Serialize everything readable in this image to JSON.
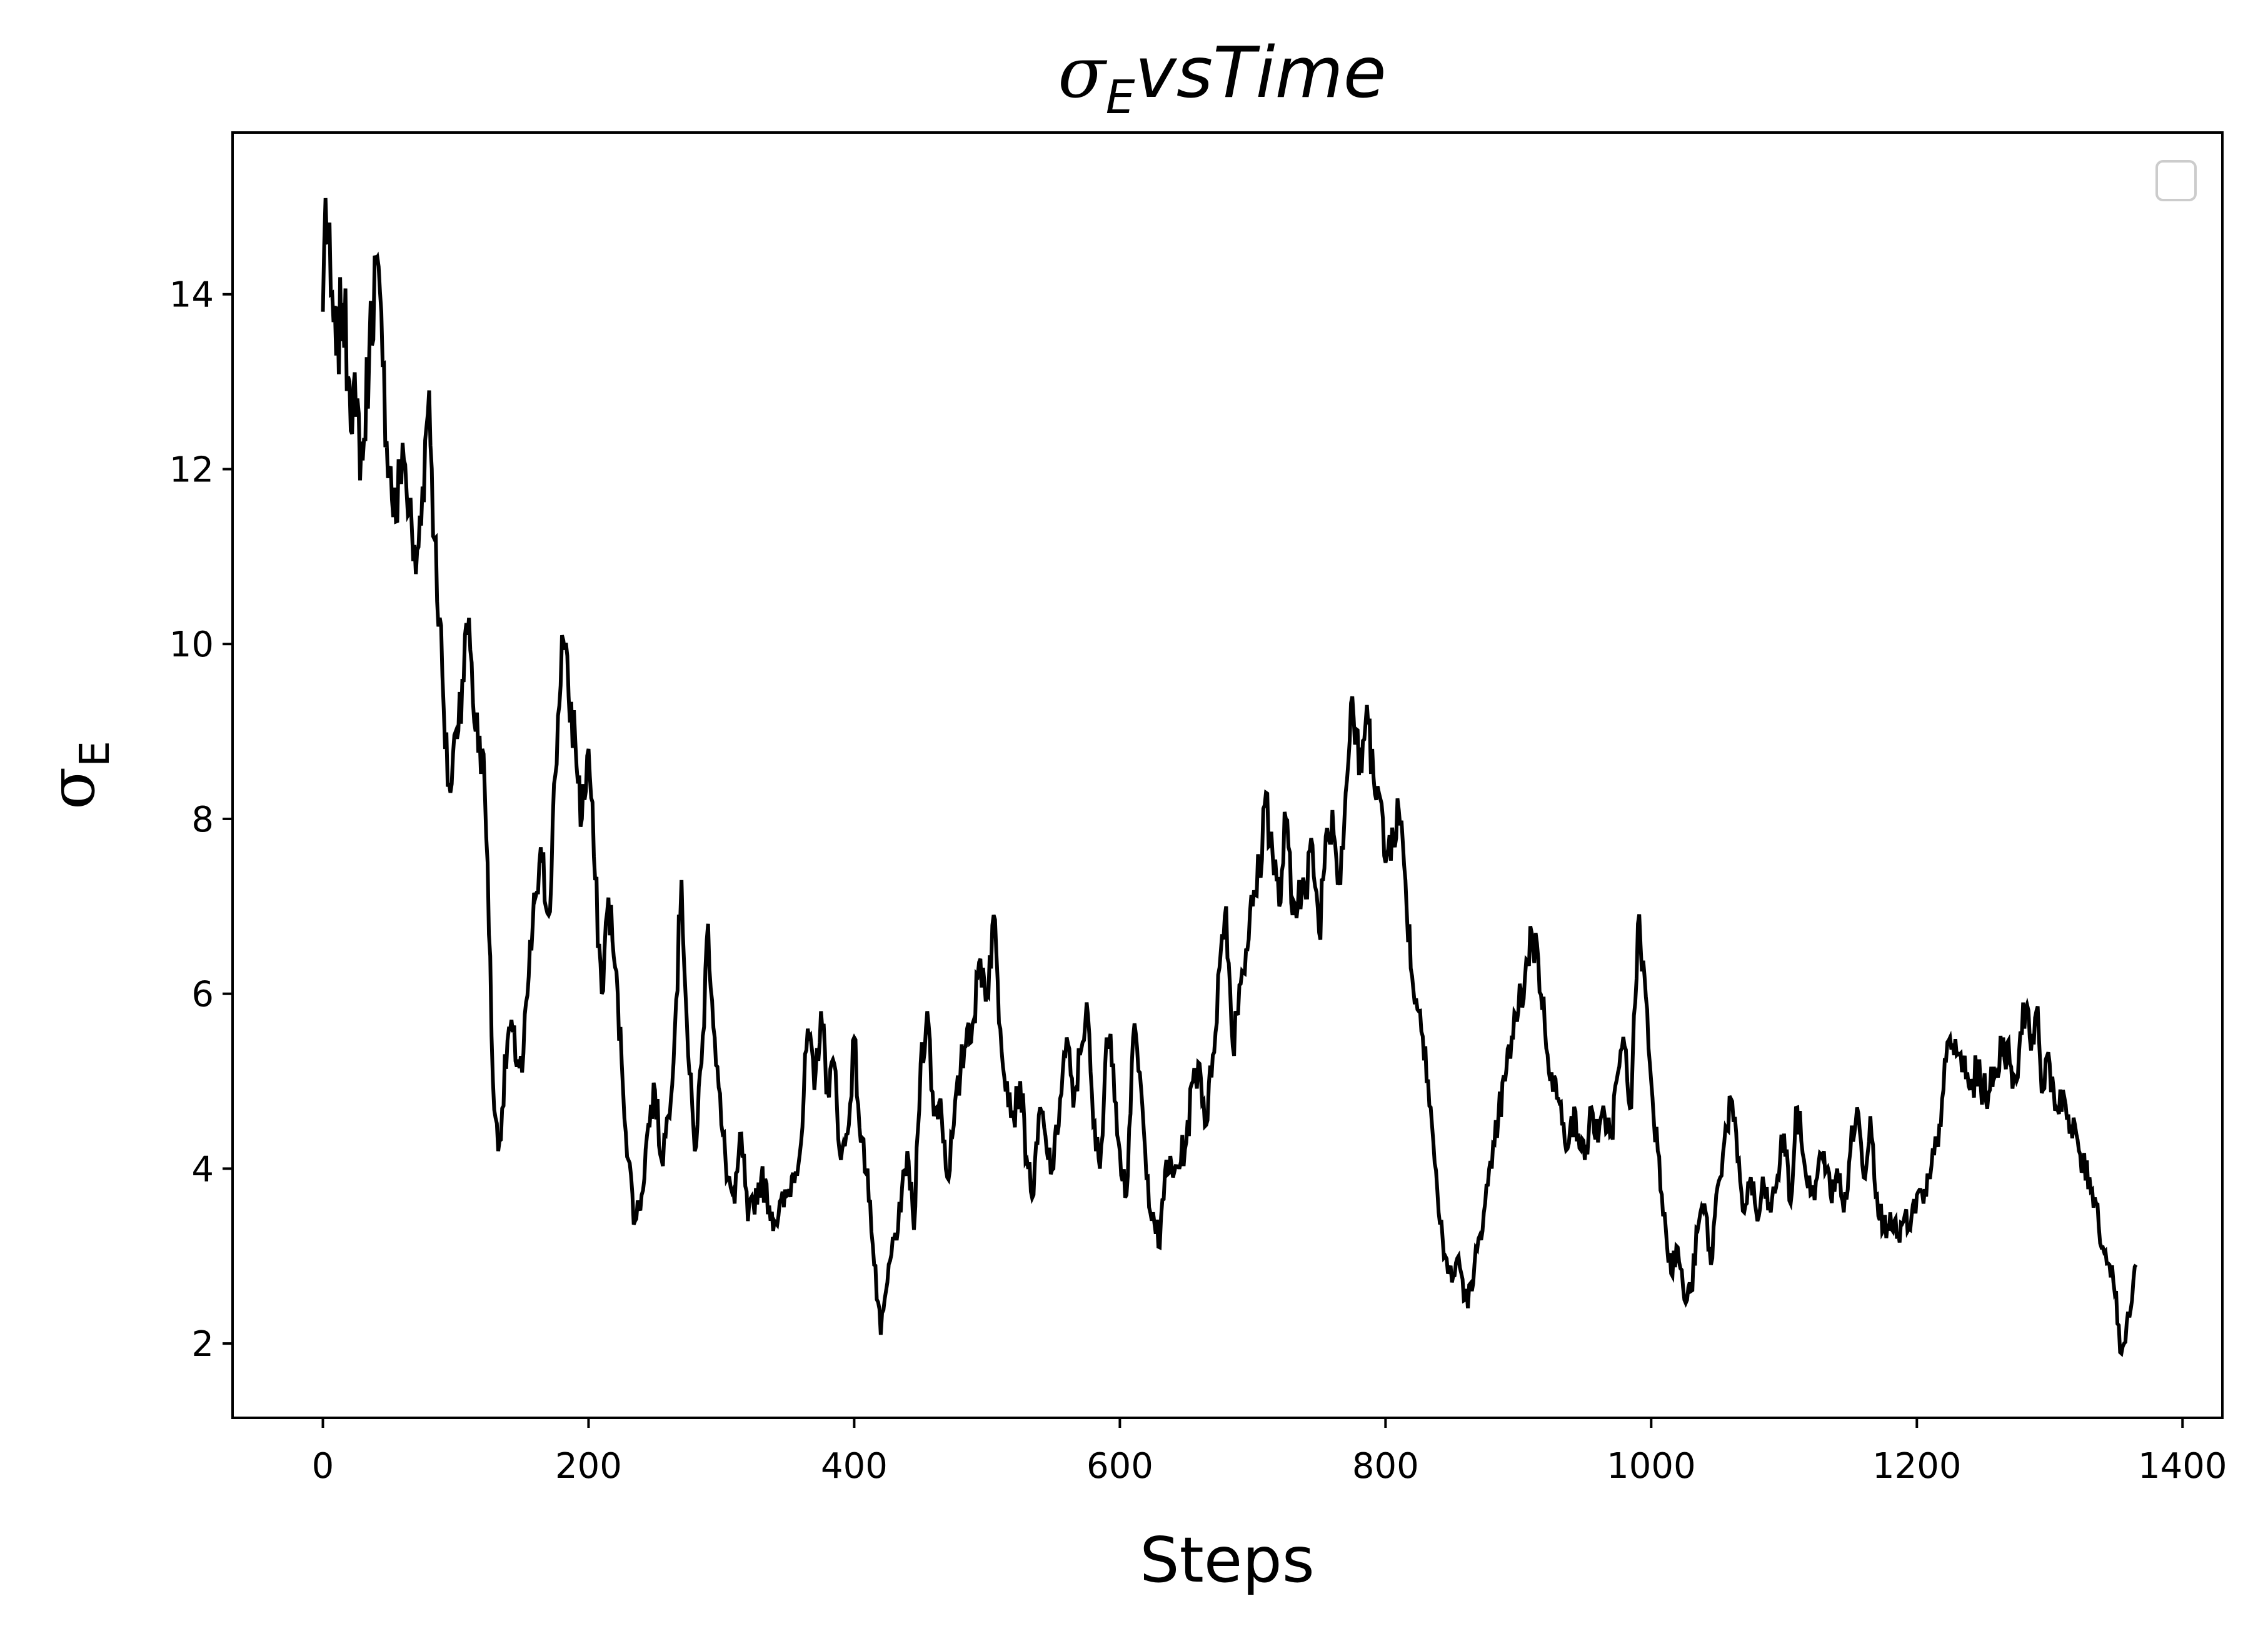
{
  "chart_data": {
    "type": "line",
    "title": {
      "sym": "σ",
      "sub": "E",
      "rest": "vsTime"
    },
    "xlabel": "Steps",
    "ylabel": {
      "sym": "σ",
      "sub": "E"
    },
    "xlim": [
      -68,
      1430
    ],
    "ylim": [
      1.15,
      15.85
    ],
    "xticks": [
      0,
      200,
      400,
      600,
      800,
      1000,
      1200,
      1400
    ],
    "yticks": [
      2,
      4,
      6,
      8,
      10,
      12,
      14
    ],
    "legend": {
      "placement": "top-right",
      "entries": []
    },
    "grid": false,
    "colors": {
      "line": "#000000",
      "axes": "#000000",
      "legend_frame": "#cccccc"
    },
    "x_range": [
      0,
      1365
    ],
    "series": [
      {
        "keyframes": [
          [
            0,
            13.8
          ],
          [
            2,
            15.1
          ],
          [
            6,
            14.0
          ],
          [
            10,
            13.3
          ],
          [
            15,
            13.9
          ],
          [
            20,
            13.0
          ],
          [
            25,
            12.6
          ],
          [
            30,
            12.1
          ],
          [
            35,
            13.4
          ],
          [
            40,
            14.4
          ],
          [
            45,
            13.2
          ],
          [
            50,
            12.0
          ],
          [
            55,
            11.4
          ],
          [
            60,
            12.3
          ],
          [
            65,
            11.5
          ],
          [
            70,
            10.8
          ],
          [
            75,
            11.8
          ],
          [
            80,
            12.9
          ],
          [
            84,
            11.2
          ],
          [
            88,
            10.3
          ],
          [
            92,
            8.8
          ],
          [
            96,
            8.3
          ],
          [
            100,
            9.0
          ],
          [
            105,
            9.6
          ],
          [
            110,
            10.3
          ],
          [
            115,
            9.0
          ],
          [
            120,
            8.8
          ],
          [
            124,
            7.5
          ],
          [
            128,
            5.0
          ],
          [
            132,
            4.2
          ],
          [
            140,
            5.6
          ],
          [
            150,
            5.1
          ],
          [
            155,
            6.2
          ],
          [
            160,
            7.1
          ],
          [
            165,
            7.5
          ],
          [
            170,
            6.9
          ],
          [
            175,
            8.5
          ],
          [
            180,
            10.1
          ],
          [
            185,
            9.4
          ],
          [
            190,
            8.9
          ],
          [
            195,
            8.0
          ],
          [
            200,
            8.8
          ],
          [
            205,
            7.3
          ],
          [
            210,
            6.0
          ],
          [
            215,
            7.1
          ],
          [
            220,
            6.3
          ],
          [
            225,
            5.2
          ],
          [
            230,
            4.1
          ],
          [
            235,
            3.4
          ],
          [
            240,
            3.7
          ],
          [
            245,
            4.5
          ],
          [
            250,
            4.9
          ],
          [
            255,
            4.1
          ],
          [
            260,
            4.6
          ],
          [
            265,
            5.6
          ],
          [
            270,
            7.3
          ],
          [
            275,
            5.3
          ],
          [
            280,
            4.2
          ],
          [
            285,
            5.2
          ],
          [
            290,
            6.8
          ],
          [
            295,
            5.5
          ],
          [
            300,
            4.5
          ],
          [
            305,
            3.9
          ],
          [
            310,
            3.6
          ],
          [
            315,
            4.4
          ],
          [
            320,
            3.4
          ],
          [
            330,
            3.9
          ],
          [
            340,
            3.4
          ],
          [
            350,
            3.7
          ],
          [
            360,
            4.3
          ],
          [
            365,
            5.6
          ],
          [
            370,
            4.9
          ],
          [
            375,
            5.8
          ],
          [
            380,
            4.9
          ],
          [
            385,
            5.2
          ],
          [
            390,
            4.1
          ],
          [
            395,
            4.4
          ],
          [
            400,
            5.5
          ],
          [
            405,
            4.3
          ],
          [
            410,
            4.0
          ],
          [
            415,
            2.9
          ],
          [
            420,
            2.1
          ],
          [
            425,
            2.7
          ],
          [
            430,
            3.2
          ],
          [
            435,
            3.5
          ],
          [
            440,
            4.2
          ],
          [
            445,
            3.3
          ],
          [
            450,
            5.2
          ],
          [
            455,
            5.8
          ],
          [
            460,
            4.6
          ],
          [
            465,
            4.8
          ],
          [
            470,
            3.9
          ],
          [
            475,
            4.5
          ],
          [
            480,
            5.1
          ],
          [
            485,
            5.6
          ],
          [
            490,
            5.7
          ],
          [
            495,
            6.4
          ],
          [
            500,
            6.0
          ],
          [
            505,
            6.9
          ],
          [
            510,
            5.6
          ],
          [
            515,
            5.0
          ],
          [
            520,
            4.6
          ],
          [
            525,
            5.0
          ],
          [
            530,
            4.1
          ],
          [
            535,
            3.7
          ],
          [
            540,
            4.7
          ],
          [
            545,
            4.2
          ],
          [
            550,
            4.0
          ],
          [
            555,
            4.8
          ],
          [
            560,
            5.5
          ],
          [
            565,
            4.7
          ],
          [
            570,
            5.3
          ],
          [
            575,
            5.9
          ],
          [
            580,
            4.5
          ],
          [
            585,
            4.0
          ],
          [
            590,
            5.5
          ],
          [
            595,
            5.2
          ],
          [
            600,
            4.2
          ],
          [
            605,
            3.7
          ],
          [
            610,
            5.5
          ],
          [
            615,
            5.1
          ],
          [
            620,
            3.9
          ],
          [
            625,
            3.5
          ],
          [
            630,
            3.1
          ],
          [
            635,
            4.1
          ],
          [
            640,
            3.9
          ],
          [
            650,
            4.3
          ],
          [
            655,
            5.0
          ],
          [
            660,
            5.2
          ],
          [
            665,
            4.5
          ],
          [
            670,
            5.3
          ],
          [
            675,
            6.3
          ],
          [
            680,
            7.0
          ],
          [
            685,
            5.4
          ],
          [
            690,
            6.1
          ],
          [
            695,
            6.5
          ],
          [
            700,
            7.0
          ],
          [
            705,
            7.4
          ],
          [
            710,
            8.3
          ],
          [
            715,
            7.6
          ],
          [
            720,
            7.0
          ],
          [
            725,
            8.0
          ],
          [
            730,
            6.9
          ],
          [
            735,
            7.3
          ],
          [
            740,
            7.1
          ],
          [
            745,
            7.7
          ],
          [
            750,
            6.7
          ],
          [
            755,
            7.8
          ],
          [
            760,
            8.1
          ],
          [
            765,
            7.3
          ],
          [
            770,
            8.3
          ],
          [
            775,
            9.4
          ],
          [
            780,
            8.5
          ],
          [
            785,
            9.1
          ],
          [
            790,
            8.8
          ],
          [
            795,
            8.3
          ],
          [
            800,
            7.5
          ],
          [
            805,
            7.9
          ],
          [
            810,
            8.1
          ],
          [
            815,
            7.3
          ],
          [
            820,
            6.2
          ],
          [
            825,
            5.8
          ],
          [
            830,
            5.4
          ],
          [
            835,
            4.5
          ],
          [
            840,
            3.5
          ],
          [
            845,
            3.0
          ],
          [
            850,
            2.7
          ],
          [
            855,
            3.0
          ],
          [
            860,
            2.5
          ],
          [
            865,
            2.6
          ],
          [
            870,
            3.2
          ],
          [
            875,
            3.6
          ],
          [
            880,
            4.0
          ],
          [
            885,
            4.6
          ],
          [
            890,
            5.0
          ],
          [
            895,
            5.5
          ],
          [
            900,
            5.8
          ],
          [
            905,
            6.2
          ],
          [
            910,
            6.7
          ],
          [
            915,
            6.4
          ],
          [
            920,
            5.6
          ],
          [
            925,
            5.1
          ],
          [
            930,
            4.8
          ],
          [
            935,
            4.3
          ],
          [
            940,
            4.6
          ],
          [
            945,
            4.4
          ],
          [
            950,
            4.1
          ],
          [
            955,
            4.7
          ],
          [
            960,
            4.3
          ],
          [
            965,
            4.6
          ],
          [
            970,
            4.4
          ],
          [
            975,
            5.1
          ],
          [
            980,
            5.4
          ],
          [
            985,
            4.7
          ],
          [
            990,
            6.8
          ],
          [
            995,
            6.2
          ],
          [
            1000,
            5.0
          ],
          [
            1005,
            4.2
          ],
          [
            1010,
            3.5
          ],
          [
            1015,
            2.8
          ],
          [
            1020,
            3.1
          ],
          [
            1025,
            2.5
          ],
          [
            1030,
            2.6
          ],
          [
            1035,
            3.3
          ],
          [
            1040,
            3.6
          ],
          [
            1045,
            2.9
          ],
          [
            1050,
            3.8
          ],
          [
            1055,
            4.3
          ],
          [
            1060,
            4.8
          ],
          [
            1065,
            4.1
          ],
          [
            1070,
            3.5
          ],
          [
            1075,
            3.9
          ],
          [
            1080,
            3.4
          ],
          [
            1085,
            3.8
          ],
          [
            1090,
            3.5
          ],
          [
            1095,
            3.9
          ],
          [
            1100,
            4.4
          ],
          [
            1105,
            3.6
          ],
          [
            1110,
            4.7
          ],
          [
            1115,
            4.1
          ],
          [
            1120,
            3.7
          ],
          [
            1125,
            3.9
          ],
          [
            1130,
            4.2
          ],
          [
            1135,
            3.7
          ],
          [
            1140,
            4.0
          ],
          [
            1145,
            3.5
          ],
          [
            1150,
            4.2
          ],
          [
            1155,
            4.7
          ],
          [
            1160,
            3.9
          ],
          [
            1165,
            4.6
          ],
          [
            1170,
            3.7
          ],
          [
            1175,
            3.3
          ],
          [
            1180,
            3.5
          ],
          [
            1185,
            3.2
          ],
          [
            1190,
            3.4
          ],
          [
            1195,
            3.3
          ],
          [
            1200,
            3.7
          ],
          [
            1205,
            3.6
          ],
          [
            1210,
            3.9
          ],
          [
            1215,
            4.3
          ],
          [
            1220,
            4.9
          ],
          [
            1225,
            5.5
          ],
          [
            1230,
            5.3
          ],
          [
            1235,
            5.2
          ],
          [
            1240,
            4.9
          ],
          [
            1245,
            5.1
          ],
          [
            1250,
            4.9
          ],
          [
            1255,
            4.9
          ],
          [
            1260,
            5.1
          ],
          [
            1265,
            5.5
          ],
          [
            1270,
            5.2
          ],
          [
            1275,
            5.0
          ],
          [
            1280,
            5.9
          ],
          [
            1285,
            5.5
          ],
          [
            1290,
            5.8
          ],
          [
            1295,
            4.9
          ],
          [
            1300,
            5.2
          ],
          [
            1305,
            4.7
          ],
          [
            1310,
            4.9
          ],
          [
            1315,
            4.4
          ],
          [
            1320,
            4.4
          ],
          [
            1325,
            4.0
          ],
          [
            1330,
            3.9
          ],
          [
            1335,
            3.6
          ],
          [
            1340,
            3.1
          ],
          [
            1345,
            2.9
          ],
          [
            1350,
            2.6
          ],
          [
            1353,
            1.9
          ],
          [
            1356,
            2.0
          ],
          [
            1360,
            2.3
          ],
          [
            1365,
            2.9
          ]
        ]
      }
    ]
  }
}
